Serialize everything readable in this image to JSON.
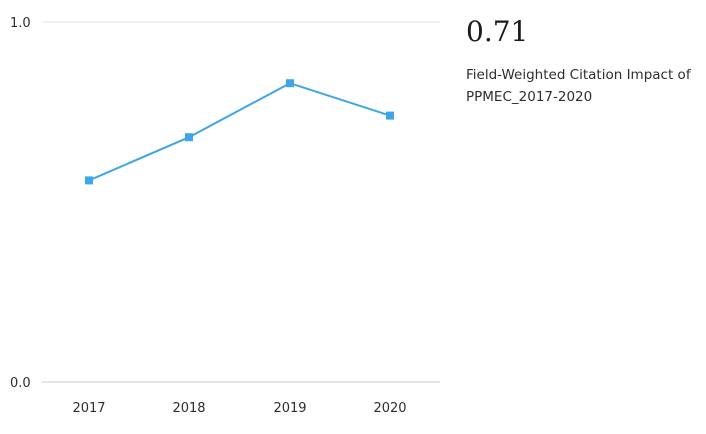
{
  "metric": {
    "value": "0.71",
    "caption": "Field-Weighted Citation Impact of PPMEC_2017-2020"
  },
  "colors": {
    "series": "#3ea6e8",
    "gridline": "#e3e3ea",
    "baseline": "#c9c9d6"
  },
  "chart_data": {
    "type": "line",
    "x": [
      "2017",
      "2018",
      "2019",
      "2020"
    ],
    "series": [
      {
        "values": [
          0.56,
          0.68,
          0.83,
          0.74
        ]
      }
    ],
    "ylim": [
      0.0,
      1.0
    ],
    "yticks": [
      "0.0",
      "1.0"
    ],
    "grid": true,
    "marker": "square"
  }
}
